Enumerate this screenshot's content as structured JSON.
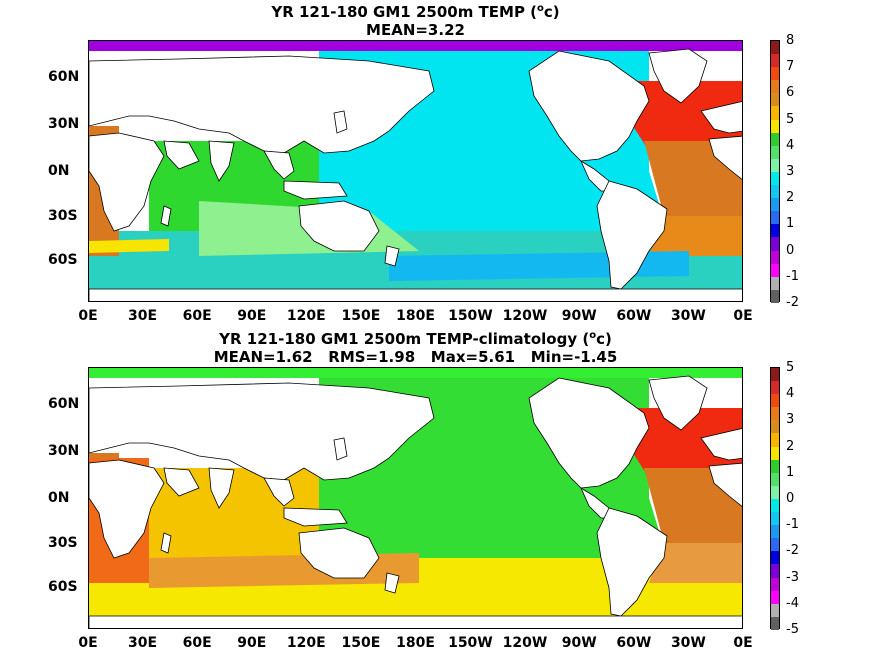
{
  "panel1": {
    "title_line1": "YR 121-180 GM1 2500m TEMP (",
    "title_sup": "o",
    "title_unit_tail": "c)",
    "title_line2": "MEAN=3.22",
    "colorbar": {
      "labels": [
        "8",
        "7",
        "6",
        "5",
        "4",
        "3",
        "2",
        "1",
        "0",
        "-1",
        "-2"
      ],
      "colors": [
        "#8b1a1a",
        "#d62a2a",
        "#f04a10",
        "#e97a1a",
        "#d98c1e",
        "#f7b400",
        "#f7e400",
        "#2ecc2e",
        "#52e06a",
        "#7ef0a8",
        "#00e8e8",
        "#12c8f0",
        "#1a9af0",
        "#2a6af0",
        "#0000e0",
        "#7a00d8",
        "#c000d8",
        "#ff00ff",
        "#b0b0b0",
        "#606060"
      ]
    },
    "region_colors": {
      "pacific": "#00e5f0",
      "indian": "#2fd82f",
      "indian_south": "#8ef08e",
      "southern": "#2ad0c0",
      "atlantic_north": "#f02a10",
      "atlantic_mid": "#d87820",
      "atlantic_south": "#e88a1a",
      "arctic": "#a000e0"
    }
  },
  "panel2": {
    "title_line1": "YR 121-180 GM1 2500m TEMP-climatology (",
    "title_sup": "o",
    "title_unit_tail": "c)",
    "title_line2": "MEAN=1.62   RMS=1.98   Max=5.61   Min=-1.45",
    "colorbar": {
      "labels": [
        "5",
        "4",
        "3",
        "2",
        "1",
        "0",
        "-1",
        "-2",
        "-3",
        "-4",
        "-5"
      ],
      "colors": [
        "#8b1a1a",
        "#d62a2a",
        "#f04a10",
        "#e97a1a",
        "#d98c1e",
        "#f7b400",
        "#f7e400",
        "#2ecc2e",
        "#52e06a",
        "#7ef0a8",
        "#00e8e8",
        "#12c8f0",
        "#1a9af0",
        "#2a6af0",
        "#0000e0",
        "#7a00d8",
        "#c000d8",
        "#ff00ff",
        "#b0b0b0",
        "#606060"
      ]
    },
    "region_colors": {
      "pacific": "#33dd33",
      "indian": "#f5c400",
      "southern": "#f7e800",
      "atlantic_north": "#f02a10",
      "atlantic_mid": "#d87820",
      "atlantic_south": "#e89a40",
      "arctic": "#33ee33"
    }
  },
  "lat_labels": [
    "60N",
    "30N",
    "0N",
    "30S",
    "60S"
  ],
  "lon_labels": [
    "0E",
    "30E",
    "60E",
    "90E",
    "120E",
    "150E",
    "180E",
    "150W",
    "120W",
    "90W",
    "60W",
    "30W",
    "0E"
  ]
}
